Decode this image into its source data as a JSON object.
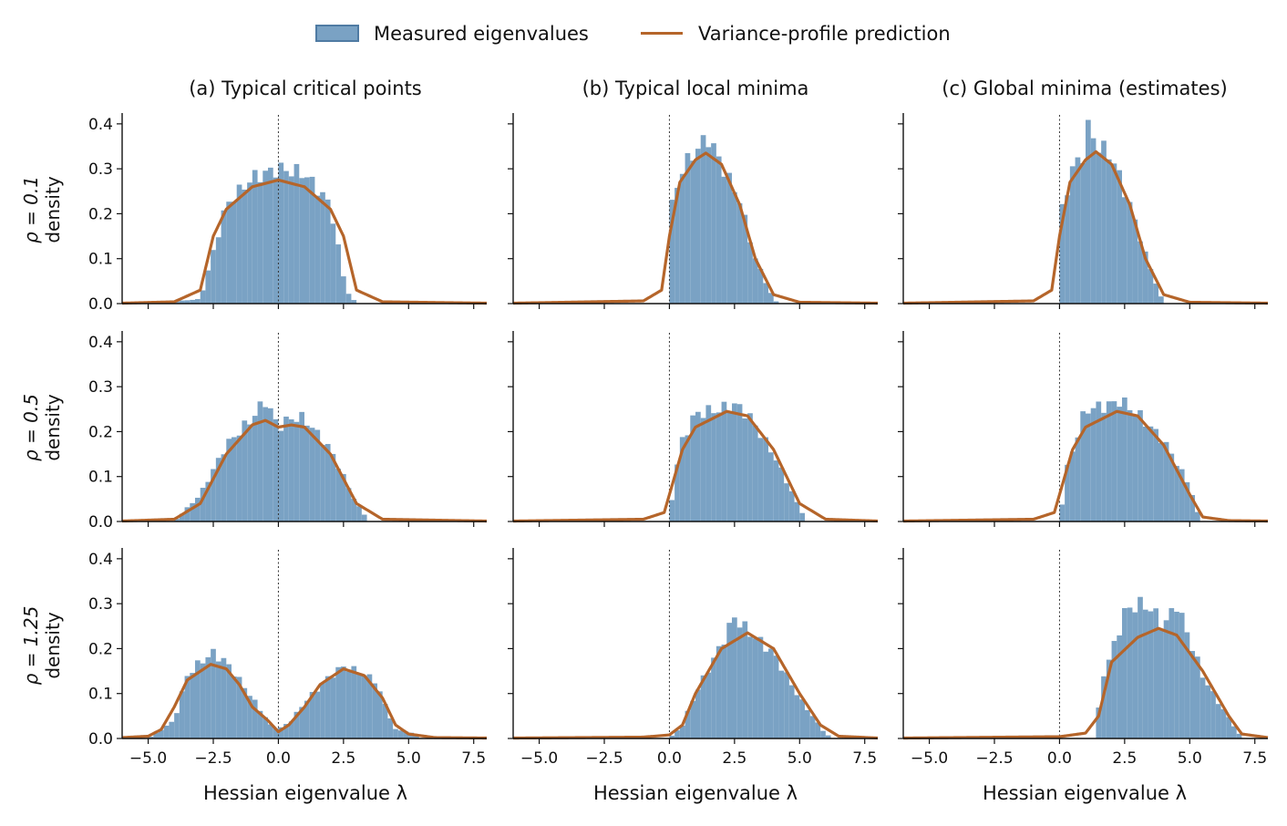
{
  "legend": {
    "position": "top-center",
    "items": [
      {
        "label": "Measured eigenvalues",
        "kind": "histogram",
        "color": "#7aa2c4",
        "edge": "#4f7ba3"
      },
      {
        "label": "Variance-profile prediction",
        "kind": "line",
        "color": "#b5652a"
      }
    ]
  },
  "columns": [
    "(a) Typical critical points",
    "(b) Typical local minima",
    "(c) Global minima (estimates)"
  ],
  "rows": [
    {
      "label": "ρ = 0.1",
      "ylabel": "density"
    },
    {
      "label": "ρ = 0.5",
      "ylabel": "density"
    },
    {
      "label": "ρ = 1.25",
      "ylabel": "density"
    }
  ],
  "x_axis": {
    "label": "Hessian eigenvalue λ",
    "ticks": [
      "−5.0",
      "−2.5",
      "0.0",
      "2.5",
      "5.0",
      "7.5"
    ],
    "tick_values": [
      -5,
      -2.5,
      0,
      2.5,
      5,
      7.5
    ]
  },
  "y_axis": {
    "ticks": [
      "0.0",
      "0.1",
      "0.2",
      "0.3",
      "0.4"
    ],
    "tick_values": [
      0,
      0.1,
      0.2,
      0.3,
      0.4
    ]
  },
  "chart_data": [
    {
      "type": "bar",
      "panel": "row1-col1",
      "xlim": [
        -6,
        8
      ],
      "ylim": [
        0,
        0.42
      ],
      "hist_peaks": [
        [
          -5.0,
          0.0
        ],
        [
          -3.0,
          0.01
        ],
        [
          -2.0,
          0.22
        ],
        [
          -1.0,
          0.28
        ],
        [
          0.0,
          0.3
        ],
        [
          1.0,
          0.29
        ],
        [
          2.0,
          0.22
        ],
        [
          2.6,
          0.03
        ],
        [
          3.0,
          0.0
        ]
      ],
      "curve": [
        [
          -6,
          0.001
        ],
        [
          -4.0,
          0.004
        ],
        [
          -3.0,
          0.03
        ],
        [
          -2.5,
          0.15
        ],
        [
          -2.0,
          0.21
        ],
        [
          -1.0,
          0.26
        ],
        [
          0.0,
          0.275
        ],
        [
          1.0,
          0.26
        ],
        [
          2.0,
          0.21
        ],
        [
          2.5,
          0.15
        ],
        [
          3.0,
          0.03
        ],
        [
          4.0,
          0.004
        ],
        [
          8,
          0.001
        ]
      ],
      "vline": 0
    },
    {
      "type": "bar",
      "panel": "row1-col2",
      "xlim": [
        -6,
        8
      ],
      "ylim": [
        0,
        0.42
      ],
      "hist_peaks": [
        [
          0.0,
          0.0
        ],
        [
          0.1,
          0.22
        ],
        [
          0.5,
          0.3
        ],
        [
          1.0,
          0.34
        ],
        [
          1.5,
          0.37
        ],
        [
          2.0,
          0.31
        ],
        [
          2.7,
          0.23
        ],
        [
          3.3,
          0.1
        ],
        [
          4.0,
          0.01
        ],
        [
          4.2,
          0.0
        ]
      ],
      "curve": [
        [
          -6,
          0.001
        ],
        [
          -1.0,
          0.006
        ],
        [
          -0.3,
          0.03
        ],
        [
          0.0,
          0.15
        ],
        [
          0.4,
          0.27
        ],
        [
          1.0,
          0.32
        ],
        [
          1.4,
          0.335
        ],
        [
          2.0,
          0.31
        ],
        [
          2.7,
          0.22
        ],
        [
          3.3,
          0.1
        ],
        [
          4.0,
          0.02
        ],
        [
          5.0,
          0.003
        ],
        [
          8,
          0.001
        ]
      ],
      "vline": 0
    },
    {
      "type": "bar",
      "panel": "row1-col3",
      "xlim": [
        -6,
        8
      ],
      "ylim": [
        0,
        0.42
      ],
      "hist_peaks": [
        [
          0.0,
          0.0
        ],
        [
          0.1,
          0.21
        ],
        [
          0.5,
          0.3
        ],
        [
          1.0,
          0.34
        ],
        [
          1.1,
          0.39
        ],
        [
          1.5,
          0.35
        ],
        [
          2.0,
          0.33
        ],
        [
          2.7,
          0.22
        ],
        [
          3.3,
          0.11
        ],
        [
          3.8,
          0.03
        ],
        [
          4.0,
          0.0
        ]
      ],
      "curve": [
        [
          -6,
          0.001
        ],
        [
          -1.0,
          0.006
        ],
        [
          -0.3,
          0.03
        ],
        [
          0.0,
          0.15
        ],
        [
          0.4,
          0.27
        ],
        [
          1.0,
          0.32
        ],
        [
          1.4,
          0.338
        ],
        [
          2.0,
          0.31
        ],
        [
          2.7,
          0.22
        ],
        [
          3.3,
          0.1
        ],
        [
          4.0,
          0.02
        ],
        [
          5.0,
          0.003
        ],
        [
          8,
          0.001
        ]
      ],
      "vline": 0
    },
    {
      "type": "bar",
      "panel": "row2-col1",
      "xlim": [
        -6,
        8
      ],
      "ylim": [
        0,
        0.42
      ],
      "hist_peaks": [
        [
          -4.0,
          0.0
        ],
        [
          -3.0,
          0.06
        ],
        [
          -2.0,
          0.17
        ],
        [
          -1.0,
          0.23
        ],
        [
          -0.5,
          0.27
        ],
        [
          0.0,
          0.21
        ],
        [
          0.5,
          0.23
        ],
        [
          1.0,
          0.23
        ],
        [
          2.0,
          0.16
        ],
        [
          3.0,
          0.04
        ],
        [
          3.5,
          0.0
        ]
      ],
      "curve": [
        [
          -6,
          0.001
        ],
        [
          -4.0,
          0.005
        ],
        [
          -3.0,
          0.04
        ],
        [
          -2.0,
          0.15
        ],
        [
          -1.0,
          0.215
        ],
        [
          -0.5,
          0.225
        ],
        [
          0.0,
          0.21
        ],
        [
          0.5,
          0.215
        ],
        [
          1.0,
          0.21
        ],
        [
          2.0,
          0.15
        ],
        [
          3.0,
          0.04
        ],
        [
          4.0,
          0.005
        ],
        [
          8,
          0.001
        ]
      ],
      "vline": 0
    },
    {
      "type": "bar",
      "panel": "row2-col2",
      "xlim": [
        -6,
        8
      ],
      "ylim": [
        0,
        0.42
      ],
      "hist_peaks": [
        [
          0.0,
          0.0
        ],
        [
          0.2,
          0.1
        ],
        [
          0.5,
          0.18
        ],
        [
          1.0,
          0.24
        ],
        [
          2.0,
          0.25
        ],
        [
          2.5,
          0.26
        ],
        [
          3.0,
          0.24
        ],
        [
          4.0,
          0.15
        ],
        [
          5.0,
          0.03
        ],
        [
          5.3,
          0.0
        ]
      ],
      "curve": [
        [
          -6,
          0.001
        ],
        [
          -1.0,
          0.005
        ],
        [
          -0.2,
          0.02
        ],
        [
          0.0,
          0.06
        ],
        [
          0.5,
          0.16
        ],
        [
          1.0,
          0.21
        ],
        [
          2.2,
          0.245
        ],
        [
          3.0,
          0.235
        ],
        [
          4.0,
          0.16
        ],
        [
          5.0,
          0.04
        ],
        [
          6.0,
          0.005
        ],
        [
          8,
          0.001
        ]
      ],
      "vline": 0
    },
    {
      "type": "bar",
      "panel": "row2-col3",
      "xlim": [
        -6,
        8
      ],
      "ylim": [
        0,
        0.42
      ],
      "hist_peaks": [
        [
          0.0,
          0.0
        ],
        [
          0.3,
          0.12
        ],
        [
          1.0,
          0.25
        ],
        [
          2.0,
          0.26
        ],
        [
          2.3,
          0.27
        ],
        [
          3.0,
          0.24
        ],
        [
          4.0,
          0.18
        ],
        [
          5.0,
          0.08
        ],
        [
          5.4,
          0.0
        ]
      ],
      "curve": [
        [
          -6,
          0.001
        ],
        [
          -1.0,
          0.005
        ],
        [
          -0.2,
          0.02
        ],
        [
          0.0,
          0.06
        ],
        [
          0.5,
          0.16
        ],
        [
          1.0,
          0.21
        ],
        [
          2.2,
          0.245
        ],
        [
          3.0,
          0.235
        ],
        [
          4.0,
          0.17
        ],
        [
          5.0,
          0.06
        ],
        [
          5.5,
          0.01
        ],
        [
          6.5,
          0.002
        ],
        [
          8,
          0.001
        ]
      ],
      "vline": 0
    },
    {
      "type": "bar",
      "panel": "row3-col1",
      "xlim": [
        -6,
        8
      ],
      "ylim": [
        0,
        0.42
      ],
      "hist_peaks": [
        [
          -5.0,
          0.0
        ],
        [
          -4.0,
          0.04
        ],
        [
          -3.5,
          0.14
        ],
        [
          -3.0,
          0.17
        ],
        [
          -2.5,
          0.19
        ],
        [
          -2.0,
          0.17
        ],
        [
          -1.0,
          0.09
        ],
        [
          -0.3,
          0.03
        ],
        [
          0.0,
          0.02
        ],
        [
          0.5,
          0.04
        ],
        [
          1.0,
          0.08
        ],
        [
          2.0,
          0.14
        ],
        [
          2.5,
          0.16
        ],
        [
          3.0,
          0.15
        ],
        [
          3.7,
          0.13
        ],
        [
          4.5,
          0.02
        ],
        [
          5.0,
          0.015
        ],
        [
          5.5,
          0.0
        ]
      ],
      "curve": [
        [
          -6,
          0.002
        ],
        [
          -5.0,
          0.005
        ],
        [
          -4.5,
          0.02
        ],
        [
          -4.0,
          0.07
        ],
        [
          -3.5,
          0.13
        ],
        [
          -2.6,
          0.165
        ],
        [
          -2.0,
          0.155
        ],
        [
          -1.5,
          0.12
        ],
        [
          -1.0,
          0.07
        ],
        [
          -0.4,
          0.04
        ],
        [
          0.0,
          0.015
        ],
        [
          0.4,
          0.03
        ],
        [
          1.0,
          0.07
        ],
        [
          1.6,
          0.12
        ],
        [
          2.5,
          0.155
        ],
        [
          3.3,
          0.14
        ],
        [
          4.0,
          0.09
        ],
        [
          4.5,
          0.03
        ],
        [
          5.0,
          0.01
        ],
        [
          6.0,
          0.002
        ],
        [
          8,
          0.001
        ]
      ],
      "vline": 0
    },
    {
      "type": "bar",
      "panel": "row3-col2",
      "xlim": [
        -6,
        8
      ],
      "ylim": [
        0,
        0.42
      ],
      "hist_peaks": [
        [
          0.0,
          0.0
        ],
        [
          0.5,
          0.03
        ],
        [
          1.0,
          0.1
        ],
        [
          2.0,
          0.21
        ],
        [
          2.5,
          0.27
        ],
        [
          3.0,
          0.24
        ],
        [
          4.0,
          0.19
        ],
        [
          5.0,
          0.09
        ],
        [
          6.0,
          0.01
        ],
        [
          6.3,
          0.0
        ]
      ],
      "curve": [
        [
          -6,
          0.001
        ],
        [
          -1.0,
          0.003
        ],
        [
          0.0,
          0.008
        ],
        [
          0.5,
          0.03
        ],
        [
          1.0,
          0.1
        ],
        [
          2.0,
          0.2
        ],
        [
          3.0,
          0.235
        ],
        [
          4.0,
          0.2
        ],
        [
          5.0,
          0.1
        ],
        [
          5.8,
          0.03
        ],
        [
          6.5,
          0.005
        ],
        [
          8,
          0.001
        ]
      ],
      "vline": 0
    },
    {
      "type": "bar",
      "panel": "row3-col3",
      "xlim": [
        -6,
        8
      ],
      "ylim": [
        0,
        0.42
      ],
      "hist_peaks": [
        [
          1.4,
          0.0
        ],
        [
          1.6,
          0.13
        ],
        [
          2.0,
          0.19
        ],
        [
          2.5,
          0.28
        ],
        [
          3.0,
          0.3
        ],
        [
          3.5,
          0.29
        ],
        [
          4.0,
          0.25
        ],
        [
          4.5,
          0.3
        ],
        [
          5.0,
          0.22
        ],
        [
          5.5,
          0.14
        ],
        [
          6.0,
          0.09
        ],
        [
          6.8,
          0.02
        ],
        [
          7.0,
          0.0
        ]
      ],
      "curve": [
        [
          -6,
          0.001
        ],
        [
          0.0,
          0.004
        ],
        [
          1.0,
          0.012
        ],
        [
          1.5,
          0.05
        ],
        [
          2.0,
          0.17
        ],
        [
          3.0,
          0.225
        ],
        [
          3.8,
          0.245
        ],
        [
          4.5,
          0.23
        ],
        [
          5.5,
          0.15
        ],
        [
          6.5,
          0.05
        ],
        [
          7.0,
          0.01
        ],
        [
          8,
          0.002
        ]
      ],
      "vline": 0
    }
  ]
}
